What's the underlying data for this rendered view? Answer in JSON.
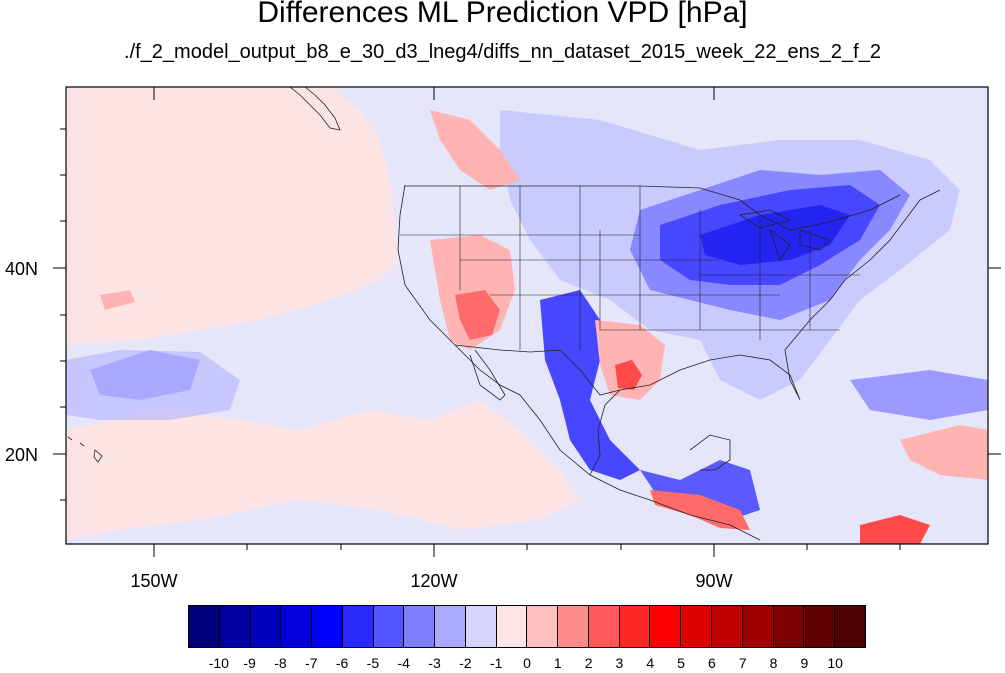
{
  "title": "Differences ML Prediction VPD [hPa]",
  "subtitle": "./f_2_model_output_b8_e_30_d3_lneg4/diffs_nn_dataset_2015_week_22_ens_2_f_2",
  "axes": {
    "lat_labels": [
      "40N",
      "20N"
    ],
    "lon_labels": [
      "150W",
      "120W",
      "90W"
    ]
  },
  "colorbar": {
    "labels": [
      "-10",
      "-9",
      "-8",
      "-7",
      "-6",
      "-5",
      "-4",
      "-3",
      "-2",
      "-1",
      "0",
      "1",
      "2",
      "3",
      "4",
      "5",
      "6",
      "7",
      "8",
      "9",
      "10"
    ],
    "colors": [
      "#00007f",
      "#00009f",
      "#0000bf",
      "#0000df",
      "#0000ff",
      "#2a2aff",
      "#5555ff",
      "#7f7fff",
      "#aaaaff",
      "#d4d4ff",
      "#ffe6e6",
      "#ffbfbf",
      "#ff8c8c",
      "#ff5959",
      "#ff2626",
      "#ff0000",
      "#df0000",
      "#bf0000",
      "#9f0000",
      "#7f0000",
      "#600000"
    ]
  },
  "colors": {
    "background_field": "#e6e6fa",
    "ocean_pink": "#fde4e4"
  }
}
